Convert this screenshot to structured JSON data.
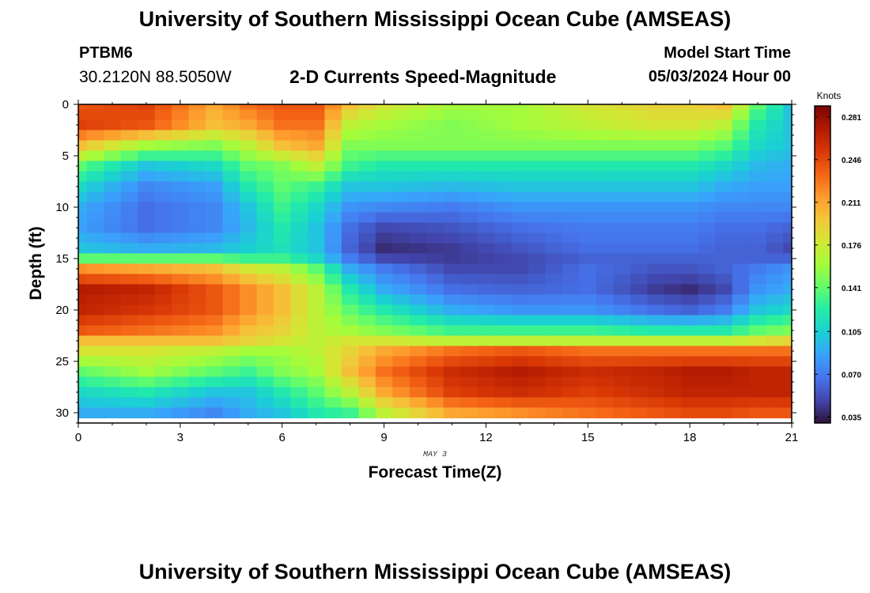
{
  "header": {
    "title": "University of Southern Mississippi Ocean Cube (AMSEAS)",
    "station": "PTBM6",
    "coordinates": "30.2120N  88.5050W",
    "chart_title": "2-D Currents Speed-Magnitude",
    "model_start_label": "Model Start Time",
    "model_start_value": "05/03/2024 Hour 00"
  },
  "footer": {
    "title": "University of Southern Mississippi Ocean Cube (AMSEAS)"
  },
  "chart_data": {
    "type": "heatmap",
    "title": "2-D Currents Speed-Magnitude",
    "xlabel": "Forecast Time(Z)",
    "ylabel": "Depth (ft)",
    "x_sublabel": "MAY 3",
    "xlim": [
      0,
      21
    ],
    "ylim": [
      0,
      31
    ],
    "y_inverted": true,
    "x_ticks": [
      0,
      3,
      6,
      9,
      12,
      15,
      18,
      21
    ],
    "y_ticks": [
      0,
      5,
      10,
      15,
      20,
      25,
      30
    ],
    "colorbar": {
      "label": "Knots",
      "min": 0.03,
      "max": 0.29,
      "ticks": [
        "0.281",
        "0.246",
        "0.211",
        "0.176",
        "0.141",
        "0.105",
        "0.070",
        "0.035"
      ],
      "colors": [
        "#30123b",
        "#4145ab",
        "#4675ed",
        "#39a2fc",
        "#1bcfd4",
        "#24eca6",
        "#61fc6c",
        "#a4fc3b",
        "#d1e834",
        "#f3c63a",
        "#fe9b2d",
        "#f36315",
        "#d93806",
        "#b11901",
        "#7a0402"
      ]
    },
    "grid": {
      "times": [
        0,
        0.5,
        1,
        1.5,
        2,
        2.5,
        3,
        3.5,
        4,
        4.5,
        5,
        5.5,
        6,
        6.5,
        7,
        7.5,
        8,
        8.5,
        9,
        9.5,
        10,
        10.5,
        11,
        11.5,
        12,
        12.5,
        13,
        13.5,
        14,
        14.5,
        15,
        15.5,
        16,
        16.5,
        17,
        17.5,
        18,
        18.5,
        19,
        19.5,
        20,
        20.5,
        21
      ],
      "depths": [
        0,
        1,
        2,
        3,
        4,
        5,
        6,
        7,
        8,
        9,
        10,
        11,
        12,
        13,
        14,
        15,
        16,
        17,
        18,
        19,
        20,
        21,
        22,
        23,
        24,
        25,
        26,
        27,
        28,
        29,
        30
      ]
    },
    "profiles": [
      {
        "time": 0,
        "depth": [
          0,
          2,
          4,
          6,
          8,
          10,
          12,
          14,
          15,
          16,
          18,
          20,
          22,
          23,
          24,
          26,
          28,
          30
        ],
        "speed": [
          0.24,
          0.25,
          0.2,
          0.14,
          0.11,
          0.09,
          0.085,
          0.1,
          0.14,
          0.22,
          0.27,
          0.265,
          0.24,
          0.2,
          0.18,
          0.14,
          0.11,
          0.09
        ]
      },
      {
        "time": 2,
        "depth": [
          0,
          2,
          4,
          6,
          8,
          10,
          12,
          14,
          15,
          16,
          18,
          20,
          22,
          23,
          24,
          26,
          28,
          30
        ],
        "speed": [
          0.25,
          0.24,
          0.16,
          0.1,
          0.075,
          0.065,
          0.065,
          0.09,
          0.14,
          0.21,
          0.265,
          0.255,
          0.23,
          0.2,
          0.18,
          0.16,
          0.12,
          0.09
        ]
      },
      {
        "time": 4,
        "depth": [
          0,
          2,
          4,
          6,
          8,
          10,
          12,
          14,
          15,
          16,
          18,
          20,
          22,
          23,
          24,
          26,
          28,
          30
        ],
        "speed": [
          0.21,
          0.2,
          0.15,
          0.11,
          0.085,
          0.075,
          0.075,
          0.095,
          0.14,
          0.2,
          0.24,
          0.24,
          0.22,
          0.2,
          0.17,
          0.14,
          0.1,
          0.075
        ]
      },
      {
        "time": 5,
        "depth": [
          0,
          2,
          4,
          6,
          8,
          10,
          12,
          14,
          15,
          16,
          18,
          20,
          22,
          23,
          24,
          26,
          28,
          30
        ],
        "speed": [
          0.23,
          0.21,
          0.17,
          0.14,
          0.12,
          0.1,
          0.095,
          0.105,
          0.13,
          0.18,
          0.22,
          0.22,
          0.2,
          0.19,
          0.16,
          0.13,
          0.1,
          0.09
        ]
      },
      {
        "time": 6,
        "depth": [
          0,
          2,
          4,
          6,
          8,
          10,
          12,
          14,
          15,
          16,
          18,
          20,
          22,
          23,
          24,
          26,
          28,
          30
        ],
        "speed": [
          0.24,
          0.23,
          0.2,
          0.15,
          0.14,
          0.13,
          0.12,
          0.115,
          0.13,
          0.17,
          0.2,
          0.2,
          0.19,
          0.18,
          0.16,
          0.15,
          0.12,
          0.1
        ]
      },
      {
        "time": 7,
        "depth": [
          0,
          2,
          4,
          6,
          8,
          10,
          12,
          14,
          15,
          16,
          18,
          20,
          22,
          23,
          24,
          26,
          28,
          30
        ],
        "speed": [
          0.24,
          0.23,
          0.21,
          0.17,
          0.13,
          0.11,
          0.1,
          0.1,
          0.11,
          0.14,
          0.17,
          0.17,
          0.17,
          0.17,
          0.17,
          0.16,
          0.14,
          0.12
        ]
      },
      {
        "time": 8,
        "depth": [
          0,
          2,
          4,
          6,
          8,
          10,
          12,
          14,
          15,
          16,
          18,
          20,
          22,
          23,
          24,
          26,
          28,
          30
        ],
        "speed": [
          0.2,
          0.17,
          0.15,
          0.13,
          0.1,
          0.08,
          0.065,
          0.06,
          0.07,
          0.09,
          0.12,
          0.14,
          0.16,
          0.18,
          0.19,
          0.2,
          0.17,
          0.13
        ]
      },
      {
        "time": 9,
        "depth": [
          0,
          2,
          4,
          6,
          8,
          10,
          12,
          14,
          15,
          16,
          18,
          20,
          22,
          23,
          24,
          26,
          28,
          30
        ],
        "speed": [
          0.18,
          0.16,
          0.15,
          0.12,
          0.1,
          0.075,
          0.05,
          0.04,
          0.05,
          0.07,
          0.09,
          0.12,
          0.15,
          0.18,
          0.21,
          0.23,
          0.21,
          0.17
        ]
      },
      {
        "time": 11,
        "depth": [
          0,
          2,
          4,
          6,
          8,
          10,
          12,
          14,
          15,
          16,
          18,
          20,
          22,
          23,
          24,
          26,
          28,
          30
        ],
        "speed": [
          0.16,
          0.15,
          0.15,
          0.12,
          0.095,
          0.07,
          0.055,
          0.045,
          0.045,
          0.05,
          0.065,
          0.09,
          0.13,
          0.17,
          0.23,
          0.26,
          0.25,
          0.21
        ]
      },
      {
        "time": 13,
        "depth": [
          0,
          2,
          4,
          6,
          8,
          10,
          12,
          14,
          15,
          16,
          18,
          20,
          22,
          23,
          24,
          26,
          28,
          30
        ],
        "speed": [
          0.16,
          0.16,
          0.15,
          0.12,
          0.1,
          0.08,
          0.065,
          0.055,
          0.05,
          0.05,
          0.06,
          0.08,
          0.13,
          0.17,
          0.24,
          0.27,
          0.26,
          0.22
        ]
      },
      {
        "time": 15,
        "depth": [
          0,
          2,
          4,
          6,
          8,
          10,
          12,
          14,
          15,
          16,
          18,
          20,
          22,
          23,
          24,
          26,
          28,
          30
        ],
        "speed": [
          0.18,
          0.17,
          0.15,
          0.12,
          0.1,
          0.08,
          0.07,
          0.065,
          0.06,
          0.065,
          0.065,
          0.08,
          0.13,
          0.17,
          0.23,
          0.26,
          0.25,
          0.23
        ]
      },
      {
        "time": 17,
        "depth": [
          0,
          2,
          4,
          6,
          8,
          10,
          12,
          14,
          15,
          16,
          18,
          20,
          22,
          23,
          24,
          26,
          28,
          30
        ],
        "speed": [
          0.19,
          0.18,
          0.15,
          0.12,
          0.1,
          0.08,
          0.07,
          0.065,
          0.06,
          0.055,
          0.045,
          0.065,
          0.12,
          0.17,
          0.23,
          0.265,
          0.26,
          0.24
        ]
      },
      {
        "time": 18,
        "depth": [
          0,
          2,
          4,
          6,
          8,
          10,
          12,
          14,
          15,
          16,
          18,
          20,
          22,
          23,
          24,
          26,
          28,
          30
        ],
        "speed": [
          0.19,
          0.18,
          0.15,
          0.12,
          0.1,
          0.08,
          0.07,
          0.065,
          0.06,
          0.055,
          0.04,
          0.06,
          0.12,
          0.17,
          0.23,
          0.27,
          0.265,
          0.245
        ]
      },
      {
        "time": 19,
        "depth": [
          0,
          2,
          4,
          6,
          8,
          10,
          12,
          14,
          15,
          16,
          18,
          20,
          22,
          23,
          24,
          26,
          28,
          30
        ],
        "speed": [
          0.2,
          0.17,
          0.14,
          0.11,
          0.09,
          0.075,
          0.065,
          0.06,
          0.06,
          0.06,
          0.05,
          0.07,
          0.12,
          0.17,
          0.23,
          0.27,
          0.265,
          0.245
        ]
      },
      {
        "time": 20,
        "depth": [
          0,
          2,
          4,
          6,
          8,
          10,
          12,
          14,
          15,
          16,
          18,
          20,
          22,
          23,
          24,
          26,
          28,
          30
        ],
        "speed": [
          0.14,
          0.12,
          0.11,
          0.095,
          0.085,
          0.075,
          0.065,
          0.06,
          0.06,
          0.07,
          0.08,
          0.1,
          0.14,
          0.18,
          0.23,
          0.265,
          0.265,
          0.24
        ]
      },
      {
        "time": 21,
        "depth": [
          0,
          2,
          4,
          6,
          8,
          10,
          12,
          14,
          15,
          16,
          18,
          20,
          22,
          23,
          24,
          26,
          28,
          30
        ],
        "speed": [
          0.1,
          0.1,
          0.1,
          0.09,
          0.085,
          0.075,
          0.06,
          0.05,
          0.06,
          0.08,
          0.09,
          0.11,
          0.15,
          0.19,
          0.23,
          0.265,
          0.265,
          0.24
        ]
      }
    ]
  }
}
